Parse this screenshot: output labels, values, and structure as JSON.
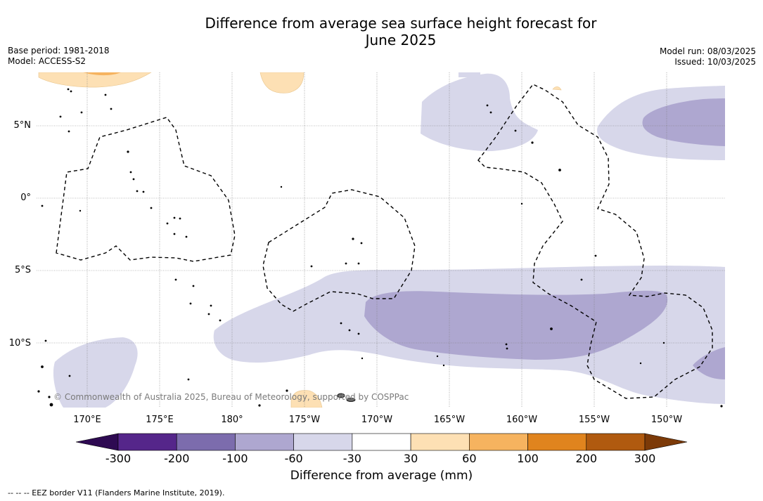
{
  "title_line1": "Difference from average sea surface height forecast for",
  "title_line2": "June 2025",
  "meta_left": {
    "base_period": "Base period: 1981-2018",
    "model": "Model: ACCESS-S2"
  },
  "meta_right": {
    "model_run": "Model run: 08/03/2025",
    "issued": "Issued: 10/03/2025"
  },
  "lon_labels": [
    "170°E",
    "175°E",
    "180°",
    "175°W",
    "170°W",
    "165°W",
    "160°W",
    "155°W",
    "150°W"
  ],
  "lat_labels": [
    "5°N",
    "0°",
    "5°S",
    "10°S"
  ],
  "copyright": "© Commonwealth of Australia 2025, Bureau of Meteorology, supported by COSPPac",
  "colorbar": {
    "ticks": [
      "-300",
      "-200",
      "-100",
      "-60",
      "-30",
      "30",
      "60",
      "100",
      "200",
      "300"
    ],
    "colors": [
      "#2e0a52",
      "#55268a",
      "#7c6cad",
      "#aea7d0",
      "#d7d7ea",
      "#ffffff",
      "#fde0b4",
      "#f6b35f",
      "#e0841e",
      "#b05a0f",
      "#7c3a08"
    ],
    "title": "Difference from average (mm)"
  },
  "footer": "--  --  -- EEZ border V11 (Flanders Marine Institute, 2019)."
}
